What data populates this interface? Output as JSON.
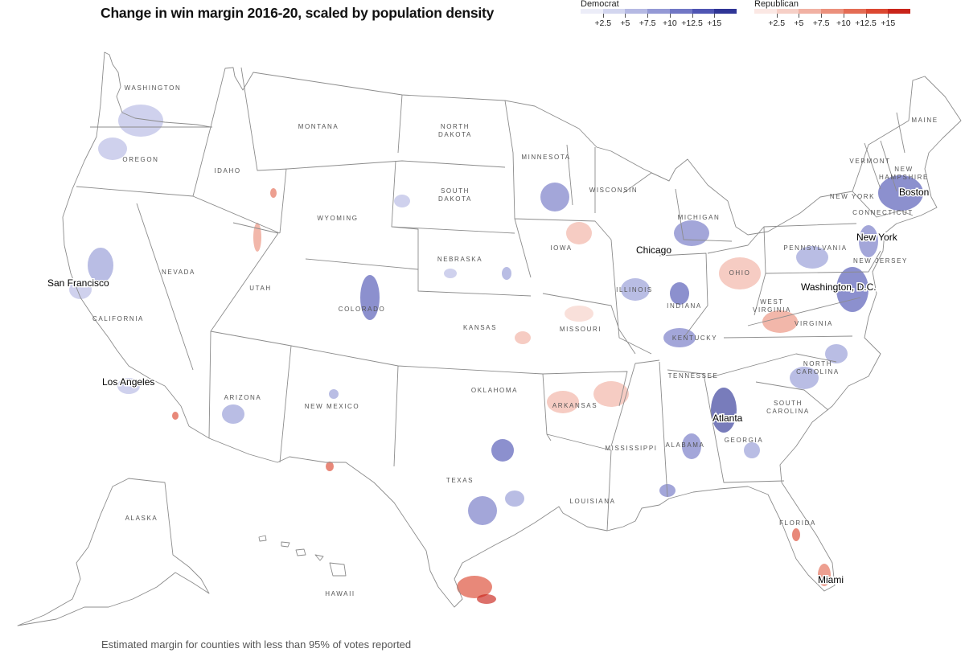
{
  "title": "Change in win margin 2016-20, scaled by population density",
  "legend": {
    "democrat": {
      "label": "Democrat",
      "ticks": [
        "+2.5",
        "+5",
        "+7.5",
        "+10",
        "+12.5",
        "+15"
      ],
      "colors": [
        "#ecedf8",
        "#d3d6ef",
        "#b5b9e3",
        "#9499d5",
        "#7177c5",
        "#4f55b3",
        "#2f3596"
      ]
    },
    "republican": {
      "label": "Republican",
      "ticks": [
        "+2.5",
        "+5",
        "+7.5",
        "+10",
        "+12.5",
        "+15"
      ],
      "colors": [
        "#fbe8e4",
        "#f6cfc6",
        "#f1b1a3",
        "#eb907c",
        "#e46c54",
        "#dc4831",
        "#c9241a"
      ]
    }
  },
  "states": [
    "WASHINGTON",
    "OREGON",
    "CALIFORNIA",
    "NEVADA",
    "IDAHO",
    "MONTANA",
    "WYOMING",
    "UTAH",
    "ARIZONA",
    "COLORADO",
    "NEW MEXICO",
    "NORTH DAKOTA",
    "SOUTH DAKOTA",
    "NEBRASKA",
    "KANSAS",
    "OKLAHOMA",
    "TEXAS",
    "MINNESOTA",
    "IOWA",
    "MISSOURI",
    "ARKANSAS",
    "LOUISIANA",
    "WISCONSIN",
    "ILLINOIS",
    "MICHIGAN",
    "INDIANA",
    "OHIO",
    "KENTUCKY",
    "TENNESSEE",
    "MISSISSIPPI",
    "ALABAMA",
    "GEORGIA",
    "FLORIDA",
    "SOUTH CAROLINA",
    "NORTH CAROLINA",
    "VIRGINIA",
    "WEST VIRGINIA",
    "PENNSYLVANIA",
    "NEW YORK",
    "NEW JERSEY",
    "VERMONT",
    "NEW HAMPSHIRE",
    "MAINE",
    "CONNECTICUT",
    "ALASKA",
    "HAWAII"
  ],
  "cities": [
    "San Francisco",
    "Los Angeles",
    "Chicago",
    "New York",
    "Boston",
    "Washington, D.C.",
    "Atlanta",
    "Miami"
  ],
  "footnote": "Estimated margin for counties with less than 95% of votes reported"
}
